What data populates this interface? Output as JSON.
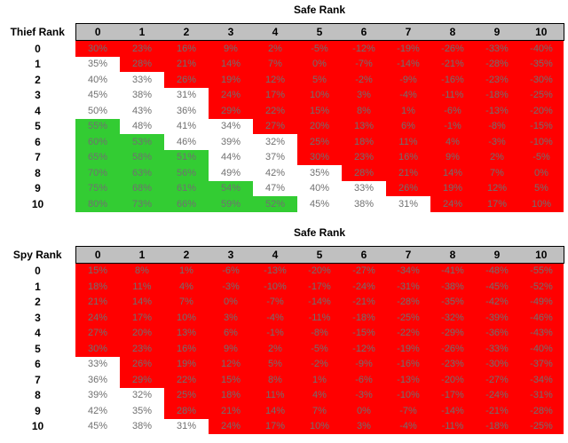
{
  "colors": {
    "red": "#FF0000",
    "green": "#33CC33",
    "white": "#FFFFFF",
    "header_bg": "#C0C0C0",
    "value_text": "#707070",
    "label_text": "#000000"
  },
  "chart_data": [
    {
      "type": "heatmap",
      "title": "Safe Rank",
      "row_axis_label": "Thief Rank",
      "col_axis_label": "Safe Rank",
      "columns": [
        "0",
        "1",
        "2",
        "3",
        "4",
        "5",
        "6",
        "7",
        "8",
        "9",
        "10"
      ],
      "rows": [
        "0",
        "1",
        "2",
        "3",
        "4",
        "5",
        "6",
        "7",
        "8",
        "9",
        "10"
      ],
      "value_suffix": "%",
      "cell_color_rule": {
        "red_if_at_most": 30,
        "green_if_at_least": 51,
        "else": "white"
      },
      "values": [
        [
          30,
          23,
          16,
          9,
          2,
          -5,
          -12,
          -19,
          -26,
          -33,
          -40
        ],
        [
          35,
          28,
          21,
          14,
          7,
          0,
          -7,
          -14,
          -21,
          -28,
          -35
        ],
        [
          40,
          33,
          26,
          19,
          12,
          5,
          -2,
          -9,
          -16,
          -23,
          -30
        ],
        [
          45,
          38,
          31,
          24,
          17,
          10,
          3,
          -4,
          -11,
          -18,
          -25
        ],
        [
          50,
          43,
          36,
          29,
          22,
          15,
          8,
          1,
          -6,
          -13,
          -20
        ],
        [
          55,
          48,
          41,
          34,
          27,
          20,
          13,
          6,
          -1,
          -8,
          -15
        ],
        [
          60,
          53,
          46,
          39,
          32,
          25,
          18,
          11,
          4,
          -3,
          -10
        ],
        [
          65,
          58,
          51,
          44,
          37,
          30,
          23,
          16,
          9,
          2,
          -5
        ],
        [
          70,
          63,
          56,
          49,
          42,
          35,
          28,
          21,
          14,
          7,
          0
        ],
        [
          75,
          68,
          61,
          54,
          47,
          40,
          33,
          26,
          19,
          12,
          5
        ],
        [
          80,
          73,
          66,
          59,
          52,
          45,
          38,
          31,
          24,
          17,
          10
        ]
      ]
    },
    {
      "type": "heatmap",
      "title": "Safe Rank",
      "row_axis_label": "Spy Rank",
      "col_axis_label": "Safe Rank",
      "columns": [
        "0",
        "1",
        "2",
        "3",
        "4",
        "5",
        "6",
        "7",
        "8",
        "9",
        "10"
      ],
      "rows": [
        "0",
        "1",
        "2",
        "3",
        "4",
        "5",
        "6",
        "7",
        "8",
        "9",
        "10"
      ],
      "value_suffix": "%",
      "cell_color_rule": {
        "red_if_at_most": 30,
        "green_if_at_least": 51,
        "else": "white"
      },
      "values": [
        [
          15,
          8,
          1,
          -6,
          -13,
          -20,
          -27,
          -34,
          -41,
          -48,
          -55
        ],
        [
          18,
          11,
          4,
          -3,
          -10,
          -17,
          -24,
          -31,
          -38,
          -45,
          -52
        ],
        [
          21,
          14,
          7,
          0,
          -7,
          -14,
          -21,
          -28,
          -35,
          -42,
          -49
        ],
        [
          24,
          17,
          10,
          3,
          -4,
          -11,
          -18,
          -25,
          -32,
          -39,
          -46
        ],
        [
          27,
          20,
          13,
          6,
          -1,
          -8,
          -15,
          -22,
          -29,
          -36,
          -43
        ],
        [
          30,
          23,
          16,
          9,
          2,
          -5,
          -12,
          -19,
          -26,
          -33,
          -40
        ],
        [
          33,
          26,
          19,
          12,
          5,
          -2,
          -9,
          -16,
          -23,
          -30,
          -37
        ],
        [
          36,
          29,
          22,
          15,
          8,
          1,
          -6,
          -13,
          -20,
          -27,
          -34
        ],
        [
          39,
          32,
          25,
          18,
          11,
          4,
          -3,
          -10,
          -17,
          -24,
          -31
        ],
        [
          42,
          35,
          28,
          21,
          14,
          7,
          0,
          -7,
          -14,
          -21,
          -28
        ],
        [
          45,
          38,
          31,
          24,
          17,
          10,
          3,
          -4,
          -11,
          -18,
          -25
        ]
      ]
    }
  ]
}
